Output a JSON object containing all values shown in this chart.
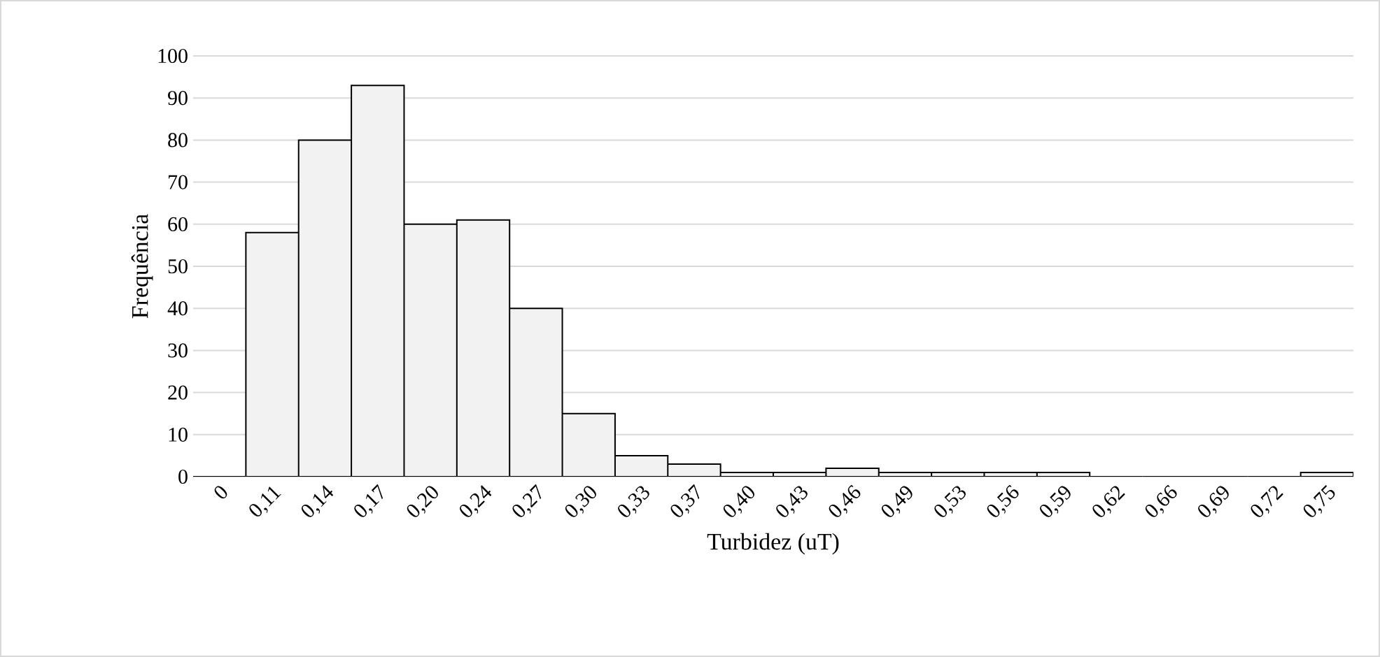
{
  "chart_data": {
    "type": "bar",
    "xlabel": "Turbidez (uT)",
    "ylabel": "Frequência",
    "categories": [
      "0",
      "0,11",
      "0,14",
      "0,17",
      "0,20",
      "0,24",
      "0,27",
      "0,30",
      "0,33",
      "0,37",
      "0,40",
      "0,43",
      "0,46",
      "0,49",
      "0,53",
      "0,56",
      "0,59",
      "0,62",
      "0,66",
      "0,69",
      "0,72",
      "0,75"
    ],
    "values": [
      0,
      58,
      80,
      93,
      60,
      61,
      40,
      15,
      5,
      3,
      1,
      1,
      2,
      1,
      1,
      1,
      1,
      0,
      0,
      0,
      0,
      1
    ],
    "color": "#f2f2f2",
    "ylim": [
      0,
      100
    ],
    "yticks": [
      0,
      10,
      20,
      30,
      40,
      50,
      60,
      70,
      80,
      90,
      100
    ],
    "grid": "y"
  }
}
